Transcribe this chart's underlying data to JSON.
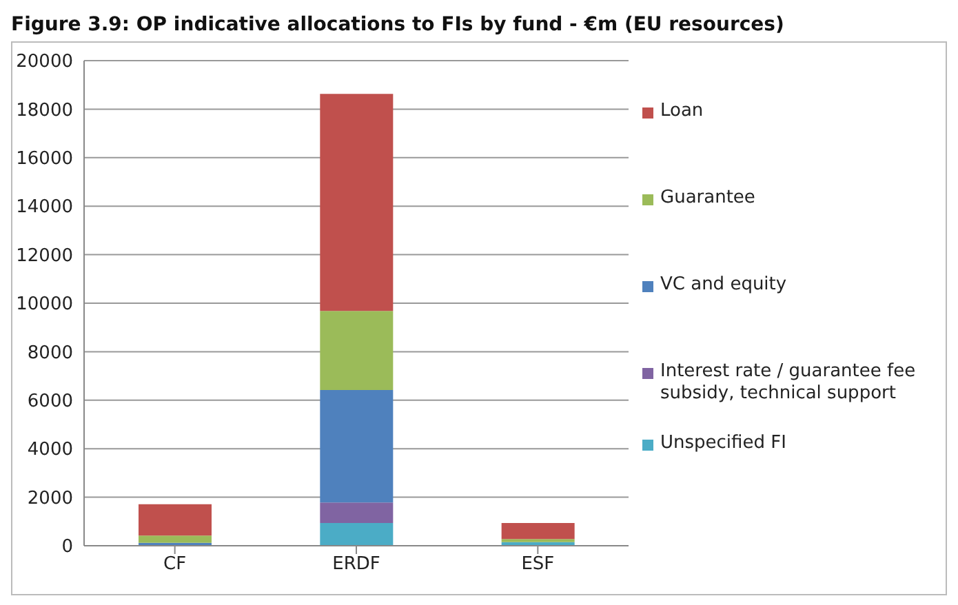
{
  "chart_data": {
    "type": "bar",
    "title": "Figure 3.9: OP indicative allocations to FIs by fund - €m (EU resources)",
    "categories": [
      "CF",
      "ERDF",
      "ESF"
    ],
    "stacked": true,
    "series": [
      {
        "name": "Unspecified FI",
        "color": "#4bacc6",
        "values": [
          0,
          940,
          150
        ]
      },
      {
        "name": "Interest rate / guarantee fee subsidy, technical support",
        "color": "#8064a2",
        "values": [
          0,
          840,
          0
        ]
      },
      {
        "name": "VC and equity",
        "color": "#4f81bd",
        "values": [
          120,
          4640,
          0
        ]
      },
      {
        "name": "Guarantee",
        "color": "#9bbb59",
        "values": [
          300,
          3260,
          130
        ]
      },
      {
        "name": "Loan",
        "color": "#c0504d",
        "values": [
          1290,
          8950,
          660
        ]
      }
    ],
    "ylim": [
      0,
      20000
    ],
    "yticks": [
      0,
      2000,
      4000,
      6000,
      8000,
      10000,
      12000,
      14000,
      16000,
      18000,
      20000
    ],
    "grid": "y",
    "legend": "right"
  }
}
